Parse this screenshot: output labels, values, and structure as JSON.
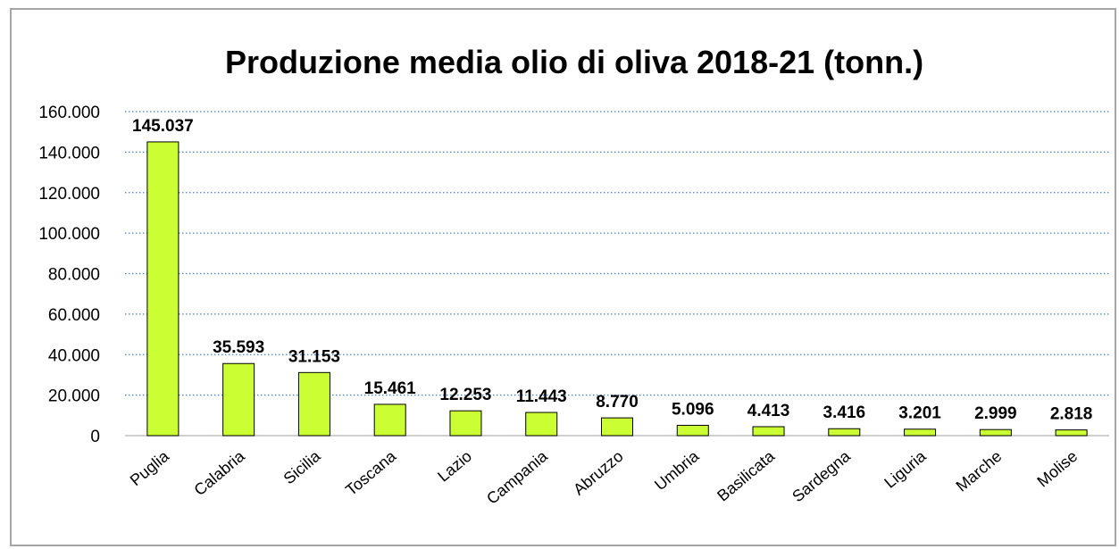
{
  "chart_data": {
    "type": "bar",
    "title": "Produzione media olio di oliva 2018-21 (tonn.)",
    "xlabel": "",
    "ylabel": "",
    "categories": [
      "Puglia",
      "Calabria",
      "Sicilia",
      "Toscana",
      "Lazio",
      "Campania",
      "Abruzzo",
      "Umbria",
      "Basilicata",
      "Sardegna",
      "Liguria",
      "Marche",
      "Molise"
    ],
    "values": [
      145037,
      35593,
      31153,
      15461,
      12253,
      11443,
      8770,
      5096,
      4413,
      3416,
      3201,
      2999,
      2818
    ],
    "data_labels": [
      "145.037",
      "35.593",
      "31.153",
      "15.461",
      "12.253",
      "11.443",
      "8.770",
      "5.096",
      "4.413",
      "3.416",
      "3.201",
      "2.999",
      "2.818"
    ],
    "ylim": [
      0,
      160000
    ],
    "yticks": [
      0,
      20000,
      40000,
      60000,
      80000,
      100000,
      120000,
      140000,
      160000
    ],
    "ytick_labels": [
      "0",
      "20.000",
      "40.000",
      "60.000",
      "80.000",
      "100.000",
      "120.000",
      "140.000",
      "160.000"
    ],
    "grid": true,
    "legend": "none",
    "colors": {
      "bar_fill": "#ccff33",
      "bar_stroke": "#000000",
      "grid": "#4f81bd"
    }
  }
}
